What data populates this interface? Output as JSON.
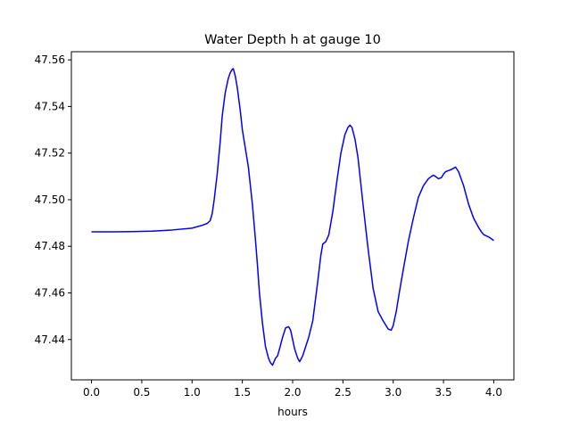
{
  "chart_data": {
    "type": "line",
    "title": "Water Depth h at gauge 10",
    "xlabel": "hours",
    "ylabel": "",
    "xlim": [
      -0.2,
      4.2
    ],
    "ylim": [
      47.4227,
      47.5635
    ],
    "xticks": [
      0.0,
      0.5,
      1.0,
      1.5,
      2.0,
      2.5,
      3.0,
      3.5,
      4.0
    ],
    "xtick_labels": [
      "0.0",
      "0.5",
      "1.0",
      "1.5",
      "2.0",
      "2.5",
      "3.0",
      "3.5",
      "4.0"
    ],
    "yticks": [
      47.44,
      47.46,
      47.48,
      47.5,
      47.52,
      47.54,
      47.56
    ],
    "ytick_labels": [
      "47.44",
      "47.46",
      "47.48",
      "47.50",
      "47.52",
      "47.54",
      "47.56"
    ],
    "grid": false,
    "legend": "none",
    "colors": {
      "line": "#0000ff",
      "axes": "#000000",
      "background": "#ffffff"
    },
    "series": [
      {
        "x": [
          0.0,
          0.2,
          0.4,
          0.6,
          0.8,
          1.0,
          1.1,
          1.15,
          1.18,
          1.2,
          1.22,
          1.25,
          1.28,
          1.3,
          1.33,
          1.36,
          1.38,
          1.4,
          1.41,
          1.43,
          1.45,
          1.48,
          1.5,
          1.53,
          1.56,
          1.6,
          1.63,
          1.65,
          1.67,
          1.7,
          1.73,
          1.76,
          1.78,
          1.8,
          1.83,
          1.85,
          1.87,
          1.9,
          1.93,
          1.96,
          1.98,
          2.0,
          2.02,
          2.05,
          2.07,
          2.1,
          2.13,
          2.16,
          2.2,
          2.25,
          2.28,
          2.3,
          2.33,
          2.36,
          2.4,
          2.44,
          2.48,
          2.52,
          2.55,
          2.57,
          2.59,
          2.62,
          2.65,
          2.7,
          2.75,
          2.8,
          2.85,
          2.9,
          2.95,
          2.98,
          3.0,
          3.03,
          3.06,
          3.1,
          3.15,
          3.2,
          3.25,
          3.3,
          3.35,
          3.38,
          3.4,
          3.42,
          3.45,
          3.48,
          3.5,
          3.52,
          3.55,
          3.58,
          3.6,
          3.62,
          3.65,
          3.7,
          3.75,
          3.8,
          3.85,
          3.88,
          3.9,
          3.95,
          4.0
        ],
        "y": [
          47.4862,
          47.4862,
          47.4863,
          47.4865,
          47.487,
          47.4878,
          47.489,
          47.4898,
          47.491,
          47.494,
          47.5,
          47.511,
          47.525,
          47.536,
          47.546,
          47.552,
          47.5545,
          47.556,
          47.5562,
          47.553,
          47.548,
          47.538,
          47.53,
          47.522,
          47.514,
          47.498,
          47.483,
          47.472,
          47.46,
          47.447,
          47.437,
          47.432,
          47.43,
          47.429,
          47.432,
          47.433,
          47.436,
          47.441,
          47.445,
          47.4455,
          47.444,
          47.44,
          47.436,
          47.432,
          47.4305,
          47.433,
          47.437,
          47.441,
          47.448,
          47.465,
          47.476,
          47.481,
          47.482,
          47.485,
          47.495,
          47.508,
          47.52,
          47.528,
          47.531,
          47.532,
          47.531,
          47.526,
          47.518,
          47.498,
          47.479,
          47.462,
          47.452,
          47.448,
          47.4445,
          47.444,
          47.446,
          47.452,
          47.46,
          47.47,
          47.482,
          47.492,
          47.501,
          47.506,
          47.509,
          47.51,
          47.5105,
          47.51,
          47.509,
          47.5095,
          47.511,
          47.512,
          47.5125,
          47.513,
          47.5135,
          47.514,
          47.512,
          47.506,
          47.498,
          47.492,
          47.488,
          47.486,
          47.485,
          47.484,
          47.4825
        ]
      }
    ]
  }
}
